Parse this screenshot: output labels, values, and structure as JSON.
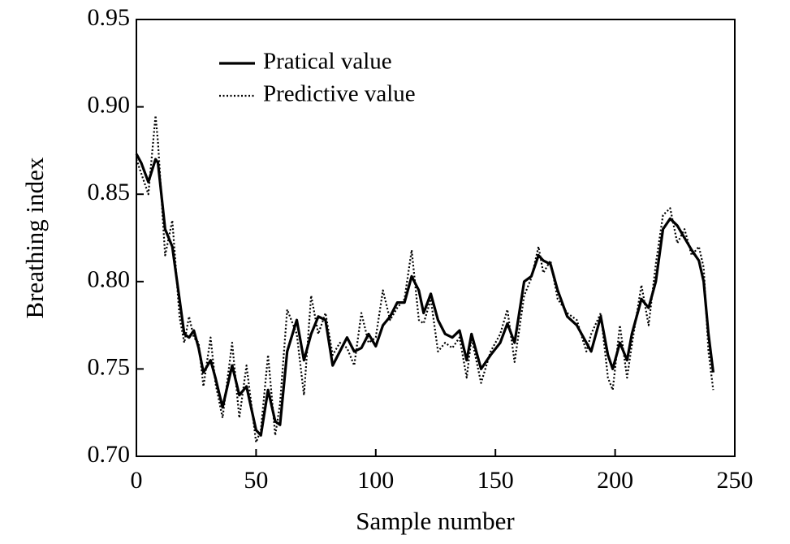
{
  "chart_data": {
    "type": "line",
    "xlabel": "Sample number",
    "ylabel": "Breathing index",
    "x": [
      0,
      2,
      5,
      8,
      9,
      12,
      15,
      18,
      20,
      22,
      24,
      26,
      28,
      31,
      33,
      36,
      40,
      43,
      46,
      50,
      52,
      55,
      58,
      60,
      63,
      67,
      70,
      73,
      76,
      79,
      82,
      85,
      88,
      91,
      94,
      97,
      100,
      103,
      106,
      109,
      112,
      115,
      118,
      120,
      123,
      126,
      129,
      132,
      135,
      138,
      140,
      144,
      148,
      152,
      155,
      158,
      162,
      165,
      168,
      170,
      173,
      176,
      180,
      184,
      188,
      190,
      194,
      197,
      199,
      202,
      205,
      207,
      211,
      214,
      217,
      220,
      223,
      226,
      229,
      232,
      235,
      237,
      239,
      241
    ],
    "series": [
      {
        "name": "Pratical value",
        "color": "#000000",
        "style": "solid",
        "values": [
          0.873,
          0.868,
          0.857,
          0.87,
          0.868,
          0.83,
          0.82,
          0.79,
          0.77,
          0.768,
          0.772,
          0.762,
          0.748,
          0.755,
          0.745,
          0.728,
          0.752,
          0.735,
          0.74,
          0.715,
          0.712,
          0.738,
          0.72,
          0.718,
          0.76,
          0.778,
          0.755,
          0.77,
          0.78,
          0.778,
          0.752,
          0.76,
          0.768,
          0.76,
          0.762,
          0.77,
          0.763,
          0.775,
          0.78,
          0.788,
          0.788,
          0.803,
          0.795,
          0.782,
          0.793,
          0.778,
          0.77,
          0.768,
          0.772,
          0.755,
          0.77,
          0.75,
          0.758,
          0.765,
          0.776,
          0.765,
          0.8,
          0.803,
          0.815,
          0.812,
          0.81,
          0.795,
          0.78,
          0.775,
          0.765,
          0.76,
          0.78,
          0.758,
          0.75,
          0.765,
          0.755,
          0.77,
          0.79,
          0.785,
          0.8,
          0.83,
          0.836,
          0.832,
          0.825,
          0.818,
          0.812,
          0.8,
          0.77,
          0.748
        ]
      },
      {
        "name": "Predictive value",
        "color": "#000000",
        "style": "dotted",
        "values": [
          0.87,
          0.862,
          0.85,
          0.895,
          0.88,
          0.815,
          0.835,
          0.78,
          0.765,
          0.78,
          0.768,
          0.765,
          0.74,
          0.768,
          0.742,
          0.722,
          0.765,
          0.722,
          0.752,
          0.708,
          0.715,
          0.758,
          0.712,
          0.73,
          0.784,
          0.77,
          0.735,
          0.792,
          0.77,
          0.782,
          0.758,
          0.765,
          0.762,
          0.752,
          0.782,
          0.765,
          0.768,
          0.795,
          0.778,
          0.785,
          0.79,
          0.818,
          0.778,
          0.776,
          0.79,
          0.76,
          0.765,
          0.762,
          0.768,
          0.745,
          0.768,
          0.742,
          0.76,
          0.77,
          0.784,
          0.754,
          0.792,
          0.802,
          0.82,
          0.805,
          0.812,
          0.79,
          0.782,
          0.778,
          0.76,
          0.77,
          0.782,
          0.745,
          0.738,
          0.775,
          0.745,
          0.764,
          0.798,
          0.775,
          0.81,
          0.838,
          0.842,
          0.822,
          0.83,
          0.815,
          0.82,
          0.808,
          0.76,
          0.738
        ]
      }
    ],
    "xlim": [
      0,
      250
    ],
    "xticks": [
      0,
      50,
      100,
      150,
      200,
      250
    ],
    "ylim": [
      0.7,
      0.95
    ],
    "yticks": [
      {
        "value": 0.7,
        "label": "0.70"
      },
      0.75,
      {
        "value": 0.8,
        "label": "0.80"
      },
      0.85,
      {
        "value": 0.9,
        "label": "0.90"
      },
      0.95
    ],
    "legend": "upper left",
    "grid": false
  }
}
